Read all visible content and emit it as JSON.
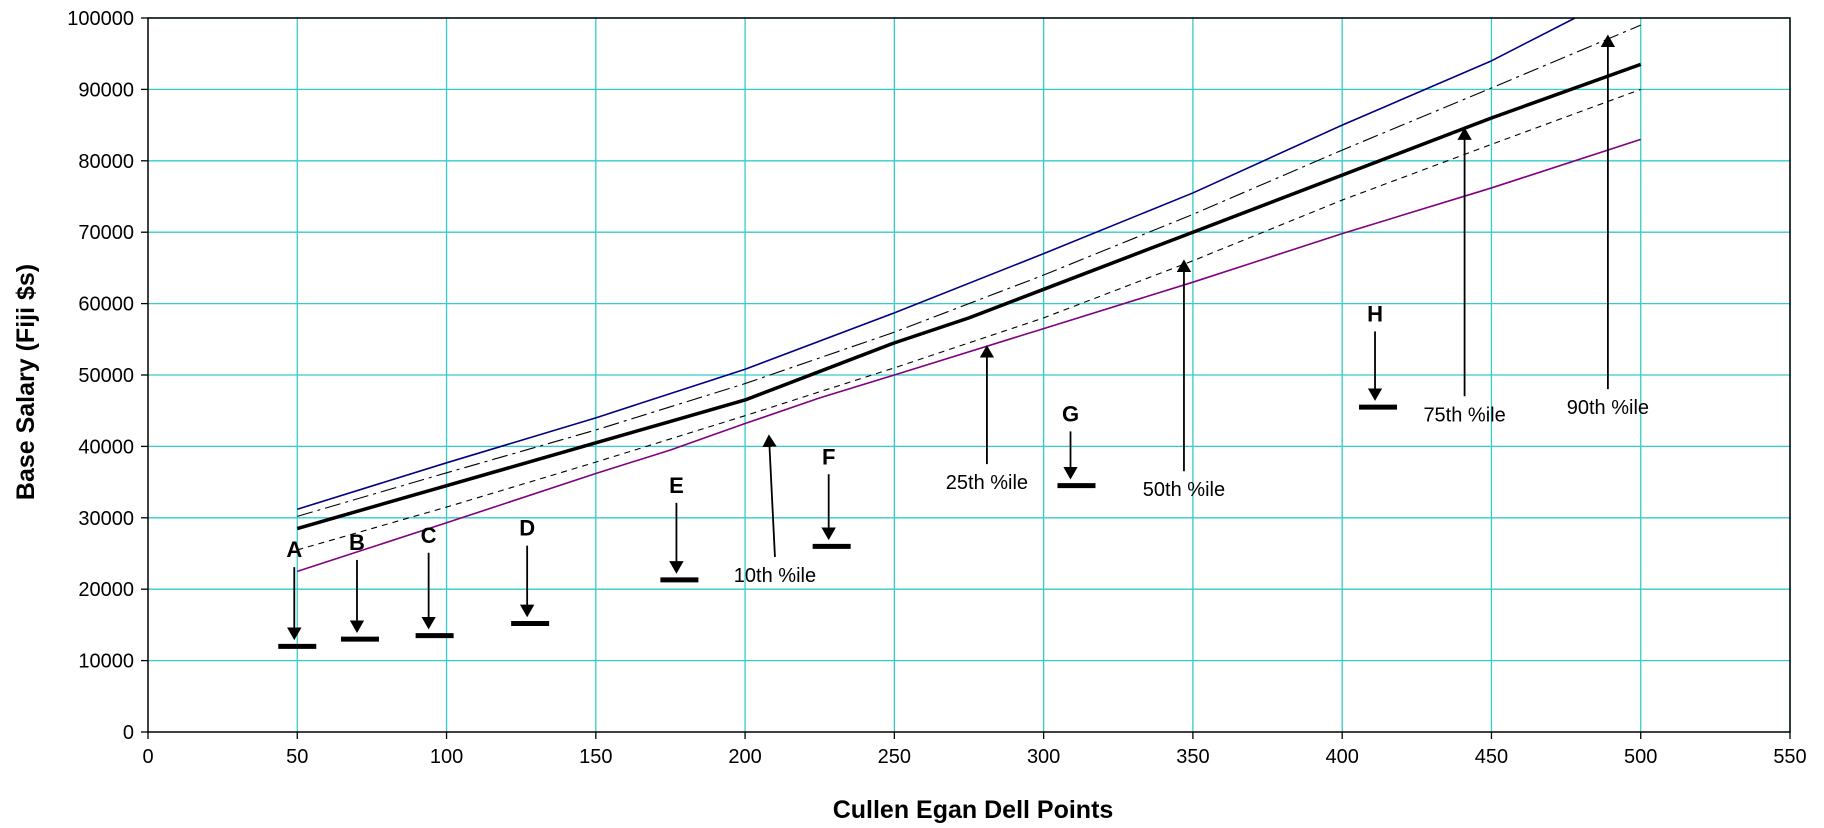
{
  "chart_data": {
    "type": "line",
    "title": "",
    "xlabel": "Cullen Egan Dell Points",
    "ylabel": "Base Salary (Fiji $s)",
    "xlim": [
      0,
      550
    ],
    "ylim": [
      0,
      100000
    ],
    "xticks": [
      0,
      50,
      100,
      150,
      200,
      250,
      300,
      350,
      400,
      450,
      500,
      550
    ],
    "yticks": [
      0,
      10000,
      20000,
      30000,
      40000,
      50000,
      60000,
      70000,
      80000,
      90000,
      100000
    ],
    "grid": true,
    "grid_color": "#33cccc",
    "series": [
      {
        "name": "10th %ile",
        "color": "#800080",
        "style": "solid",
        "x": [
          50,
          100,
          150,
          175,
          200,
          225,
          250,
          300,
          350,
          400,
          450,
          500
        ],
        "y": [
          22500,
          29300,
          36200,
          39500,
          43200,
          46800,
          50000,
          56500,
          63000,
          69800,
          76200,
          83000
        ]
      },
      {
        "name": "25th %ile",
        "color": "#000000",
        "style": "short-dash",
        "x": [
          50,
          100,
          150,
          200,
          250,
          300,
          350,
          400,
          450,
          500
        ],
        "y": [
          25500,
          31500,
          37800,
          44300,
          51000,
          58000,
          66000,
          74500,
          82300,
          90000
        ]
      },
      {
        "name": "50th %ile",
        "color": "#000000",
        "style": "bold",
        "x": [
          50,
          100,
          150,
          175,
          200,
          225,
          250,
          275,
          300,
          350,
          400,
          450,
          500
        ],
        "y": [
          28500,
          34500,
          40500,
          43500,
          46500,
          50500,
          54500,
          58000,
          62000,
          70000,
          78000,
          86000,
          93500
        ]
      },
      {
        "name": "75th %ile",
        "color": "#000000",
        "style": "dash-dot",
        "x": [
          50,
          100,
          150,
          200,
          250,
          300,
          350,
          400,
          450,
          500
        ],
        "y": [
          30200,
          36300,
          42300,
          48800,
          56000,
          64000,
          72500,
          81500,
          90200,
          99000
        ]
      },
      {
        "name": "90th %ile",
        "color": "#000080",
        "style": "solid",
        "x": [
          50,
          100,
          150,
          200,
          250,
          300,
          350,
          400,
          450,
          478
        ],
        "y": [
          31200,
          37700,
          44000,
          50800,
          58700,
          67000,
          75500,
          85000,
          94000,
          100000
        ]
      }
    ],
    "percentile_labels": [
      {
        "text": "10th %ile",
        "x": 210,
        "y": 22000,
        "arrow_to_x": 208,
        "arrow_to_y": 42000
      },
      {
        "text": "25th %ile",
        "x": 281,
        "y": 35000,
        "arrow_to_x": 281,
        "arrow_to_y": 54500
      },
      {
        "text": "50th %ile",
        "x": 347,
        "y": 34000,
        "arrow_to_x": 347,
        "arrow_to_y": 66500
      },
      {
        "text": "75th %ile",
        "x": 441,
        "y": 44500,
        "arrow_to_x": 441,
        "arrow_to_y": 85000
      },
      {
        "text": "90th %ile",
        "x": 489,
        "y": 45500,
        "arrow_to_x": 489,
        "arrow_to_y": 98000
      }
    ],
    "markers": [
      {
        "label": "A",
        "x": 50,
        "y": 12000,
        "label_x": 49,
        "label_y": 24500
      },
      {
        "label": "B",
        "x": 71,
        "y": 13000,
        "label_x": 70,
        "label_y": 25500
      },
      {
        "label": "C",
        "x": 96,
        "y": 13500,
        "label_x": 94,
        "label_y": 26500
      },
      {
        "label": "D",
        "x": 128,
        "y": 15200,
        "label_x": 127,
        "label_y": 27500
      },
      {
        "label": "E",
        "x": 178,
        "y": 21300,
        "label_x": 177,
        "label_y": 33500
      },
      {
        "label": "F",
        "x": 229,
        "y": 26000,
        "label_x": 228,
        "label_y": 37500
      },
      {
        "label": "G",
        "x": 311,
        "y": 34500,
        "label_x": 309,
        "label_y": 43500
      },
      {
        "label": "H",
        "x": 412,
        "y": 45500,
        "label_x": 411,
        "label_y": 57500
      }
    ]
  }
}
